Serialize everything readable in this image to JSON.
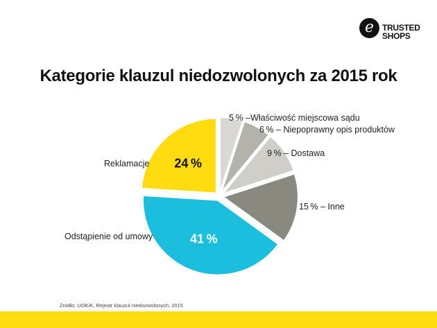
{
  "logo": {
    "mark": "e",
    "line1": "TRUSTED",
    "line2": "SHOPS"
  },
  "chart_data": {
    "type": "pie",
    "title": "Kategorie klauzul niedozwolonych za 2015 rok",
    "slices": [
      {
        "label": "5 % –Właściwość miejscowa sądu",
        "value": 5,
        "color": "#d9d8d3",
        "pct_text": "",
        "pct_color": ""
      },
      {
        "label": "6 % – Niepoprawny opis produktów",
        "value": 6,
        "color": "#b3b2ab",
        "pct_text": "",
        "pct_color": ""
      },
      {
        "label": "9 % – Dostawa",
        "value": 9,
        "color": "#cfcec8",
        "pct_text": "",
        "pct_color": ""
      },
      {
        "label": "15 % – Inne",
        "value": 15,
        "color": "#8a897f",
        "pct_text": "",
        "pct_color": ""
      },
      {
        "label": "Odstąpienie od umowy",
        "value": 41,
        "color": "#1bbedc",
        "pct_text": "41 %",
        "pct_color": "#ffffff"
      },
      {
        "label": "Reklamacje",
        "value": 24,
        "color": "#ffdc0f",
        "pct_text": "24 %",
        "pct_color": "#111111"
      }
    ]
  },
  "source": "Źródło: UOKiK, Rejestr klauzul niedozwolonych, 2015",
  "colors": {
    "accent": "#ffdc0f"
  }
}
